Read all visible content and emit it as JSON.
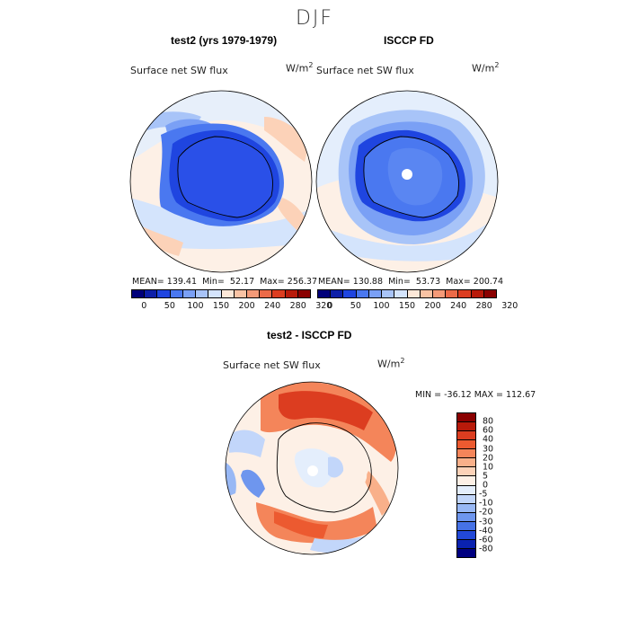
{
  "season": "DJF",
  "panel_left": {
    "title": "test2 (yrs 1979-1979)",
    "variable": "Surface net SW flux",
    "units_base": "W/m",
    "units_exp": "2",
    "stats": "MEAN= 139.41  Min=  52.17  Max= 256.37"
  },
  "panel_right": {
    "title": "ISCCP FD",
    "variable": "Surface net SW flux",
    "units_base": "W/m",
    "units_exp": "2",
    "stats": "MEAN= 130.88  Min=  53.73  Max= 200.74"
  },
  "top_colorbar": {
    "colors": [
      "#00007a",
      "#0d1fa8",
      "#1f45e0",
      "#4a78f0",
      "#7aa0f5",
      "#a8c4f8",
      "#d4e4fc",
      "#fde8d8",
      "#f9c3a4",
      "#f49a78",
      "#ec6a48",
      "#dc3d20",
      "#b81a0a",
      "#8a0000"
    ],
    "tick_labels": [
      "0",
      "50",
      "100",
      "150",
      "200",
      "240",
      "280",
      "320"
    ]
  },
  "panel_diff": {
    "title": "test2 - ISCCP FD",
    "variable": "Surface net SW flux",
    "units_base": "W/m",
    "units_exp": "2",
    "stats": "MIN = -36.12 MAX = 112.67"
  },
  "diff_colorbar": {
    "colors": [
      "#8a0000",
      "#b81a0a",
      "#dc3d20",
      "#ec5a30",
      "#f4855a",
      "#f9b08a",
      "#fcd2b8",
      "#fdf0e6",
      "#e4eefc",
      "#c2d6fa",
      "#98b8f5",
      "#6e96ee",
      "#4672e6",
      "#2248d8",
      "#0a22b0",
      "#000080"
    ],
    "tick_labels": [
      "80",
      "60",
      "40",
      "30",
      "20",
      "10",
      "5",
      "0",
      "-5",
      "-10",
      "-20",
      "-30",
      "-40",
      "-60",
      "-80"
    ]
  }
}
